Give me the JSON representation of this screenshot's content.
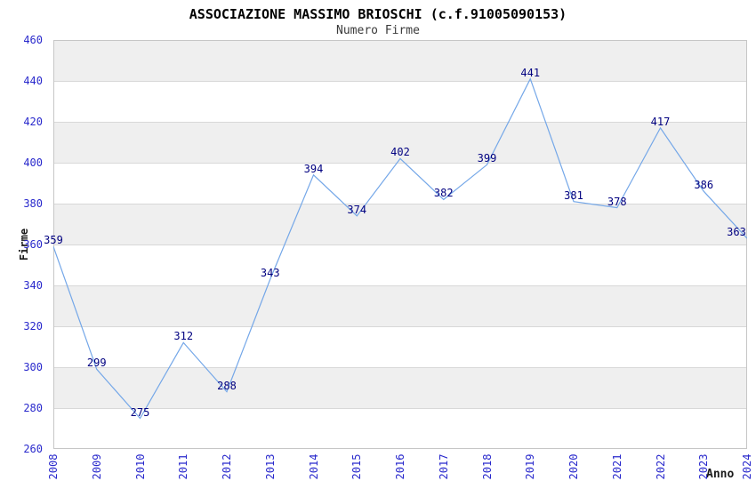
{
  "header": {
    "title": "ASSOCIAZIONE MASSIMO BRIOSCHI (c.f.91005090153)",
    "subtitle": "Numero Firme"
  },
  "chart_data": {
    "type": "line",
    "title": "ASSOCIAZIONE MASSIMO BRIOSCHI (c.f.91005090153)",
    "subtitle": "Numero Firme",
    "xlabel": "Anno",
    "ylabel": "Firme",
    "categories": [
      "2008",
      "2009",
      "2010",
      "2011",
      "2012",
      "2013",
      "2014",
      "2015",
      "2016",
      "2017",
      "2018",
      "2019",
      "2020",
      "2021",
      "2022",
      "2023",
      "2024"
    ],
    "values": [
      359,
      299,
      275,
      312,
      288,
      343,
      394,
      374,
      402,
      382,
      399,
      441,
      381,
      378,
      417,
      386,
      363
    ],
    "ylim": [
      260,
      460
    ],
    "ytick_step": 20,
    "grid": "horizontal",
    "legend": "none",
    "show_data_labels": true,
    "colors": {
      "line": "#74a7e8",
      "data_label": "#000080",
      "tick_label": "#2929cc",
      "axis_title": "#1a1a1a",
      "band_gray": "#efefef",
      "band_white": "#ffffff",
      "gridline": "#d8d8d8",
      "frame": "#c6c6c6",
      "background": "#ffffff"
    }
  }
}
